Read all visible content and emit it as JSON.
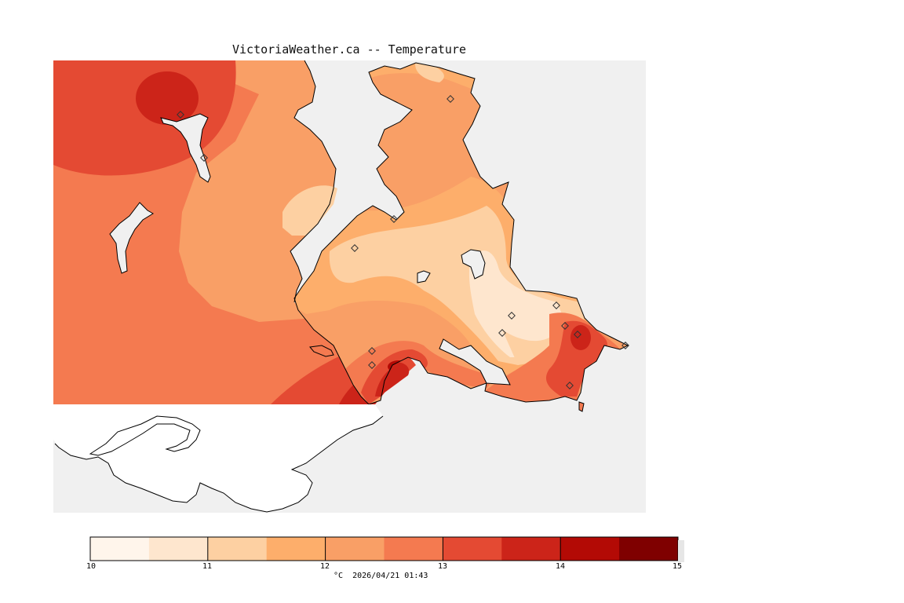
{
  "title": "VictoriaWeather.ca -- Temperature",
  "caption": "°C  2026/04/21 01:43",
  "legend": {
    "ticks": [
      "10",
      "11",
      "12",
      "13",
      "14",
      "15"
    ],
    "colors": [
      "#fff5eb",
      "#fee6ce",
      "#fdd0a2",
      "#fdae6b",
      "#f99f66",
      "#f47a50",
      "#e44a33",
      "#cc2419",
      "#b30a05",
      "#7f0000"
    ]
  },
  "colors": {
    "background": "#f0f0f0",
    "land_default": "#f47a50",
    "unmapped_land": "#ffffff",
    "coastline": "#000000"
  }
}
